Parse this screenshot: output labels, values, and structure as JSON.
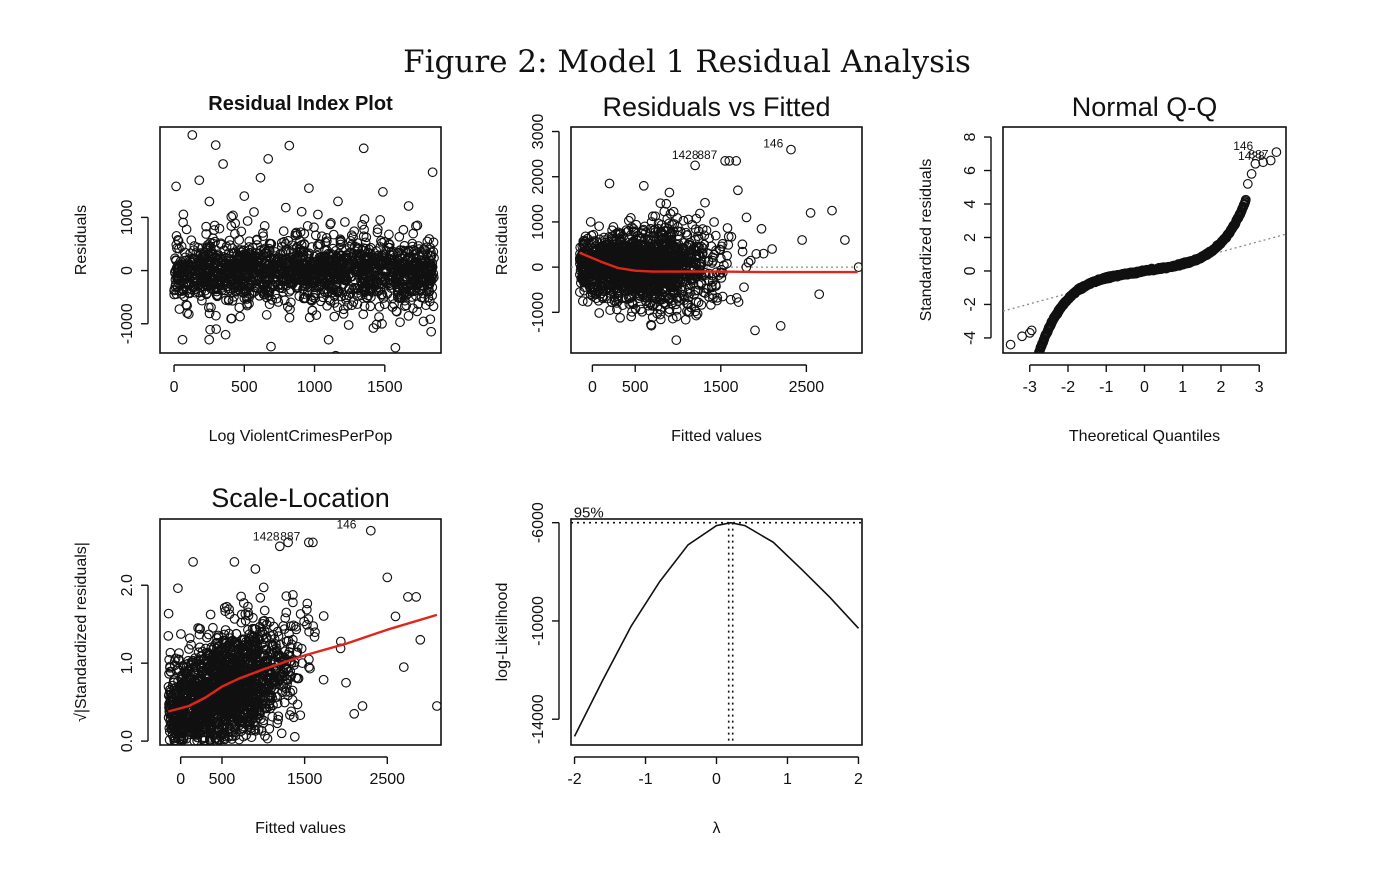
{
  "figure_title": "Figure 2: Model 1 Residual Analysis",
  "colors": {
    "axis": "#111111",
    "points": "#111111",
    "smooth": "#e0261b",
    "reference": "#8a8a8a"
  },
  "chart_data": [
    {
      "id": "p1",
      "type": "scatter",
      "title": "Residual Index Plot",
      "title_bold": true,
      "xlabel": "Log ViolentCrimesPerPop",
      "ylabel": "Residuals",
      "xlim": [
        -100,
        1900
      ],
      "ylim": [
        -1550,
        2700
      ],
      "xticks": [
        0,
        500,
        1000,
        1500
      ],
      "xticklabels": [
        "0",
        "500",
        "1000",
        "1500"
      ],
      "yticks": [
        -1000,
        0,
        1000
      ],
      "yticklabels": [
        "-1000",
        "0",
        "1000"
      ],
      "point_generation": {
        "count": 1750,
        "x_range": [
          0,
          1850
        ],
        "center": 0,
        "spread": 300,
        "outlier_share": 0.06,
        "outlier_spread": 900
      },
      "highlight_points": [
        [
          130,
          2550
        ],
        [
          670,
          2100
        ],
        [
          820,
          2350
        ],
        [
          1350,
          2300
        ],
        [
          1840,
          1850
        ],
        [
          180,
          1700
        ],
        [
          960,
          1550
        ],
        [
          500,
          1400
        ],
        [
          60,
          -1300
        ],
        [
          690,
          -1430
        ],
        [
          1100,
          -1300
        ],
        [
          1830,
          -1150
        ],
        [
          250,
          -1300
        ],
        [
          1480,
          -1000
        ],
        [
          300,
          -1100
        ]
      ]
    },
    {
      "id": "p2",
      "type": "scatter",
      "title": "Residuals vs Fitted",
      "title_bold": false,
      "xlabel": "Fitted values",
      "ylabel": "Residuals",
      "xlim": [
        -250,
        3150
      ],
      "ylim": [
        -1900,
        3100
      ],
      "xticks": [
        0,
        500,
        1500,
        2500
      ],
      "xticklabels": [
        "0",
        "500",
        "1500",
        "2500"
      ],
      "yticks": [
        -1000,
        0,
        1000,
        2000,
        3000
      ],
      "yticklabels": [
        "-1000",
        "0",
        "1000",
        "2000",
        "3000"
      ],
      "point_generation": {
        "count": 1700,
        "x_center": 550,
        "x_spread": 420,
        "x_range": [
          -150,
          2300
        ],
        "center": 0,
        "spread": 330
      },
      "highlight_points": [
        [
          1200,
          2250
        ],
        [
          1550,
          2350
        ],
        [
          1600,
          2350
        ],
        [
          1680,
          2350
        ],
        [
          2320,
          2600
        ],
        [
          200,
          1850
        ],
        [
          600,
          1800
        ],
        [
          900,
          1650
        ],
        [
          2450,
          600
        ],
        [
          2550,
          1200
        ],
        [
          2800,
          1250
        ],
        [
          2650,
          -600
        ],
        [
          2950,
          600
        ],
        [
          3110,
          0
        ],
        [
          1900,
          -1400
        ],
        [
          2200,
          -1300
        ],
        [
          2000,
          300
        ],
        [
          2100,
          400
        ],
        [
          1700,
          1700
        ],
        [
          1800,
          1100
        ]
      ],
      "smooth_line": {
        "x": [
          -150,
          100,
          300,
          500,
          700,
          1000,
          1500,
          2000,
          2500,
          3100
        ],
        "y": [
          320,
          120,
          -20,
          -80,
          -100,
          -100,
          -100,
          -110,
          -110,
          -110
        ]
      },
      "reference_line": {
        "y": 0
      },
      "point_labels": [
        {
          "text": "146",
          "x": 2300,
          "y": 2600
        },
        {
          "text": "1428",
          "x": 1310,
          "y": 2350
        },
        {
          "text": "887",
          "x": 1530,
          "y": 2350
        }
      ]
    },
    {
      "id": "p3",
      "type": "scatter",
      "title": "Normal Q-Q",
      "title_bold": false,
      "xlabel": "Theoretical Quantiles",
      "ylabel": "Standardized residuals",
      "xlim": [
        -3.7,
        3.7
      ],
      "ylim": [
        -4.9,
        8.6
      ],
      "xticks": [
        -3,
        -2,
        -1,
        0,
        1,
        2,
        3
      ],
      "xticklabels": [
        "-3",
        "-2",
        "-1",
        "0",
        "1",
        "2",
        "3"
      ],
      "yticks": [
        -4,
        -2,
        0,
        2,
        4,
        6,
        8
      ],
      "yticklabels": [
        "-4",
        "-2",
        "0",
        "2",
        "4",
        "6",
        "8"
      ],
      "point_generation": {
        "count": 700,
        "x_range": [
          -2.9,
          2.65
        ],
        "curve": "0.35*x + 0.05*x^3 + 0.018*x^5"
      },
      "highlight_points": [
        [
          -3.5,
          -4.4
        ],
        [
          -3.2,
          -3.9
        ],
        [
          -3.0,
          -3.7
        ],
        [
          -2.95,
          -3.55
        ],
        [
          2.7,
          5.2
        ],
        [
          2.8,
          5.8
        ],
        [
          2.9,
          6.4
        ],
        [
          3.1,
          6.5
        ],
        [
          3.3,
          6.6
        ],
        [
          3.45,
          7.1
        ]
      ],
      "reference_line": {
        "x1": -3.7,
        "y1": -2.4,
        "x2": 3.7,
        "y2": 2.2
      },
      "point_labels": [
        {
          "text": "146",
          "x": 3.0,
          "y": 7.1
        },
        {
          "text": "1428",
          "x": 3.3,
          "y": 6.5
        },
        {
          "text": "887",
          "x": 3.4,
          "y": 6.6
        }
      ]
    },
    {
      "id": "p4",
      "type": "scatter",
      "title": "Scale-Location",
      "title_bold": false,
      "xlabel": "Fitted values",
      "ylabel": "√|Standardized residuals|",
      "xlim": [
        -250,
        3150
      ],
      "ylim": [
        -0.05,
        2.85
      ],
      "xticks": [
        0,
        500,
        1500,
        2500
      ],
      "xticklabels": [
        "0",
        "500",
        "1500",
        "2500"
      ],
      "yticks": [
        0,
        1,
        2
      ],
      "yticklabels": [
        "0.0",
        "1.0",
        "2.0"
      ],
      "point_generation": {
        "count": 1700,
        "x_center": 550,
        "x_spread": 420,
        "x_range": [
          -150,
          2300
        ],
        "center_slope": 0.0004,
        "center_base": 0.45,
        "spread": 0.35
      },
      "highlight_points": [
        [
          1200,
          2.5
        ],
        [
          1300,
          2.55
        ],
        [
          1550,
          2.55
        ],
        [
          1600,
          2.55
        ],
        [
          2300,
          2.7
        ],
        [
          150,
          2.3
        ],
        [
          650,
          2.3
        ],
        [
          2500,
          2.1
        ],
        [
          2750,
          1.85
        ],
        [
          2850,
          1.85
        ],
        [
          3100,
          0.45
        ],
        [
          2600,
          1.6
        ],
        [
          2900,
          1.3
        ],
        [
          2700,
          0.95
        ],
        [
          2000,
          0.75
        ],
        [
          2200,
          0.45
        ],
        [
          2100,
          0.35
        ]
      ],
      "smooth_line": {
        "x": [
          -150,
          100,
          300,
          500,
          700,
          1000,
          1500,
          2000,
          2500,
          3100
        ],
        "y": [
          0.38,
          0.45,
          0.56,
          0.7,
          0.8,
          0.92,
          1.1,
          1.25,
          1.43,
          1.62
        ]
      },
      "point_labels": [
        {
          "text": "146",
          "x": 2200,
          "y": 2.7
        },
        {
          "text": "1428",
          "x": 1270,
          "y": 2.55
        },
        {
          "text": "887",
          "x": 1520,
          "y": 2.55
        }
      ]
    },
    {
      "id": "p5",
      "type": "line",
      "title": "",
      "title_bold": false,
      "xlabel": "λ",
      "ylabel": "log-Likelihood",
      "xlim": [
        -2.05,
        2.05
      ],
      "ylim": [
        -15050,
        -5850
      ],
      "xticks": [
        -2,
        -1,
        0,
        1,
        2
      ],
      "xticklabels": [
        "-2",
        "-1",
        "0",
        "1",
        "2"
      ],
      "yticks": [
        -14000,
        -10000,
        -6000
      ],
      "yticklabels": [
        "-14000",
        "-10000",
        "-6000"
      ],
      "curve": {
        "x": [
          -2,
          -1.6,
          -1.2,
          -0.8,
          -0.4,
          0,
          0.2,
          0.4,
          0.8,
          1.2,
          1.6,
          2
        ],
        "y": [
          -14700,
          -12400,
          -10200,
          -8400,
          -6900,
          -6120,
          -6000,
          -6120,
          -6800,
          -7900,
          -9050,
          -10300
        ]
      },
      "ci_line_y": -6000,
      "ci_label": "95%",
      "ci_label_x": -1.8,
      "mle_lambda": 0.2
    }
  ]
}
